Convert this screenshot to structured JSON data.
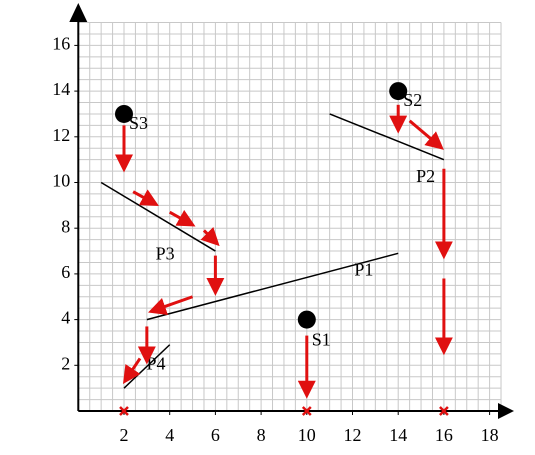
{
  "axes": {
    "xticks": [
      2,
      4,
      6,
      8,
      10,
      12,
      14,
      16,
      18
    ],
    "yticks": [
      2,
      4,
      6,
      8,
      10,
      12,
      14,
      16
    ]
  },
  "points": [
    {
      "label": "S1",
      "x": 10,
      "y": 4
    },
    {
      "label": "S2",
      "x": 14,
      "y": 14
    },
    {
      "label": "S3",
      "x": 2,
      "y": 13
    }
  ],
  "segments": [
    {
      "label": "P1",
      "x1": 3,
      "y1": 4,
      "x2": 14,
      "y2": 6.9
    },
    {
      "label": "P2",
      "x1": 11,
      "y1": 13,
      "x2": 16,
      "y2": 11
    },
    {
      "label": "P3",
      "x1": 1,
      "y1": 10,
      "x2": 6,
      "y2": 7
    },
    {
      "label": "P4",
      "x1": 2,
      "y1": 1,
      "x2": 4,
      "y2": 2.9
    }
  ]
}
